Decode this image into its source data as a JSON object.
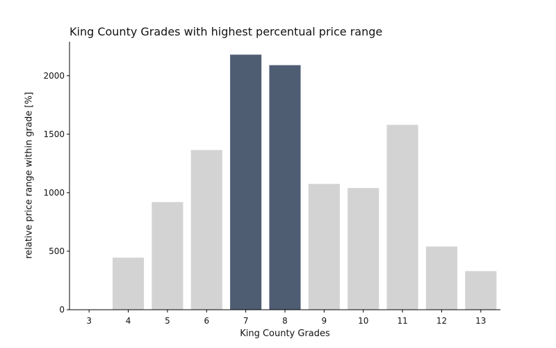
{
  "chart_data": {
    "type": "bar",
    "title": "King County Grades with highest percentual price range",
    "xlabel": "King County Grades",
    "ylabel": "relative price range within grade [%]",
    "categories": [
      "3",
      "4",
      "5",
      "6",
      "7",
      "8",
      "9",
      "10",
      "11",
      "12",
      "13"
    ],
    "values": [
      0,
      445,
      920,
      1365,
      2180,
      2090,
      1075,
      1040,
      1580,
      540,
      330
    ],
    "highlighted": [
      "7",
      "8"
    ],
    "yticks": [
      0,
      500,
      1000,
      1500,
      2000
    ],
    "ylim": [
      0,
      2290
    ],
    "grid": false,
    "legend": "none",
    "colors": {
      "default": "#d3d3d3",
      "highlight": "#4f5d73",
      "axis": "#000000"
    }
  }
}
